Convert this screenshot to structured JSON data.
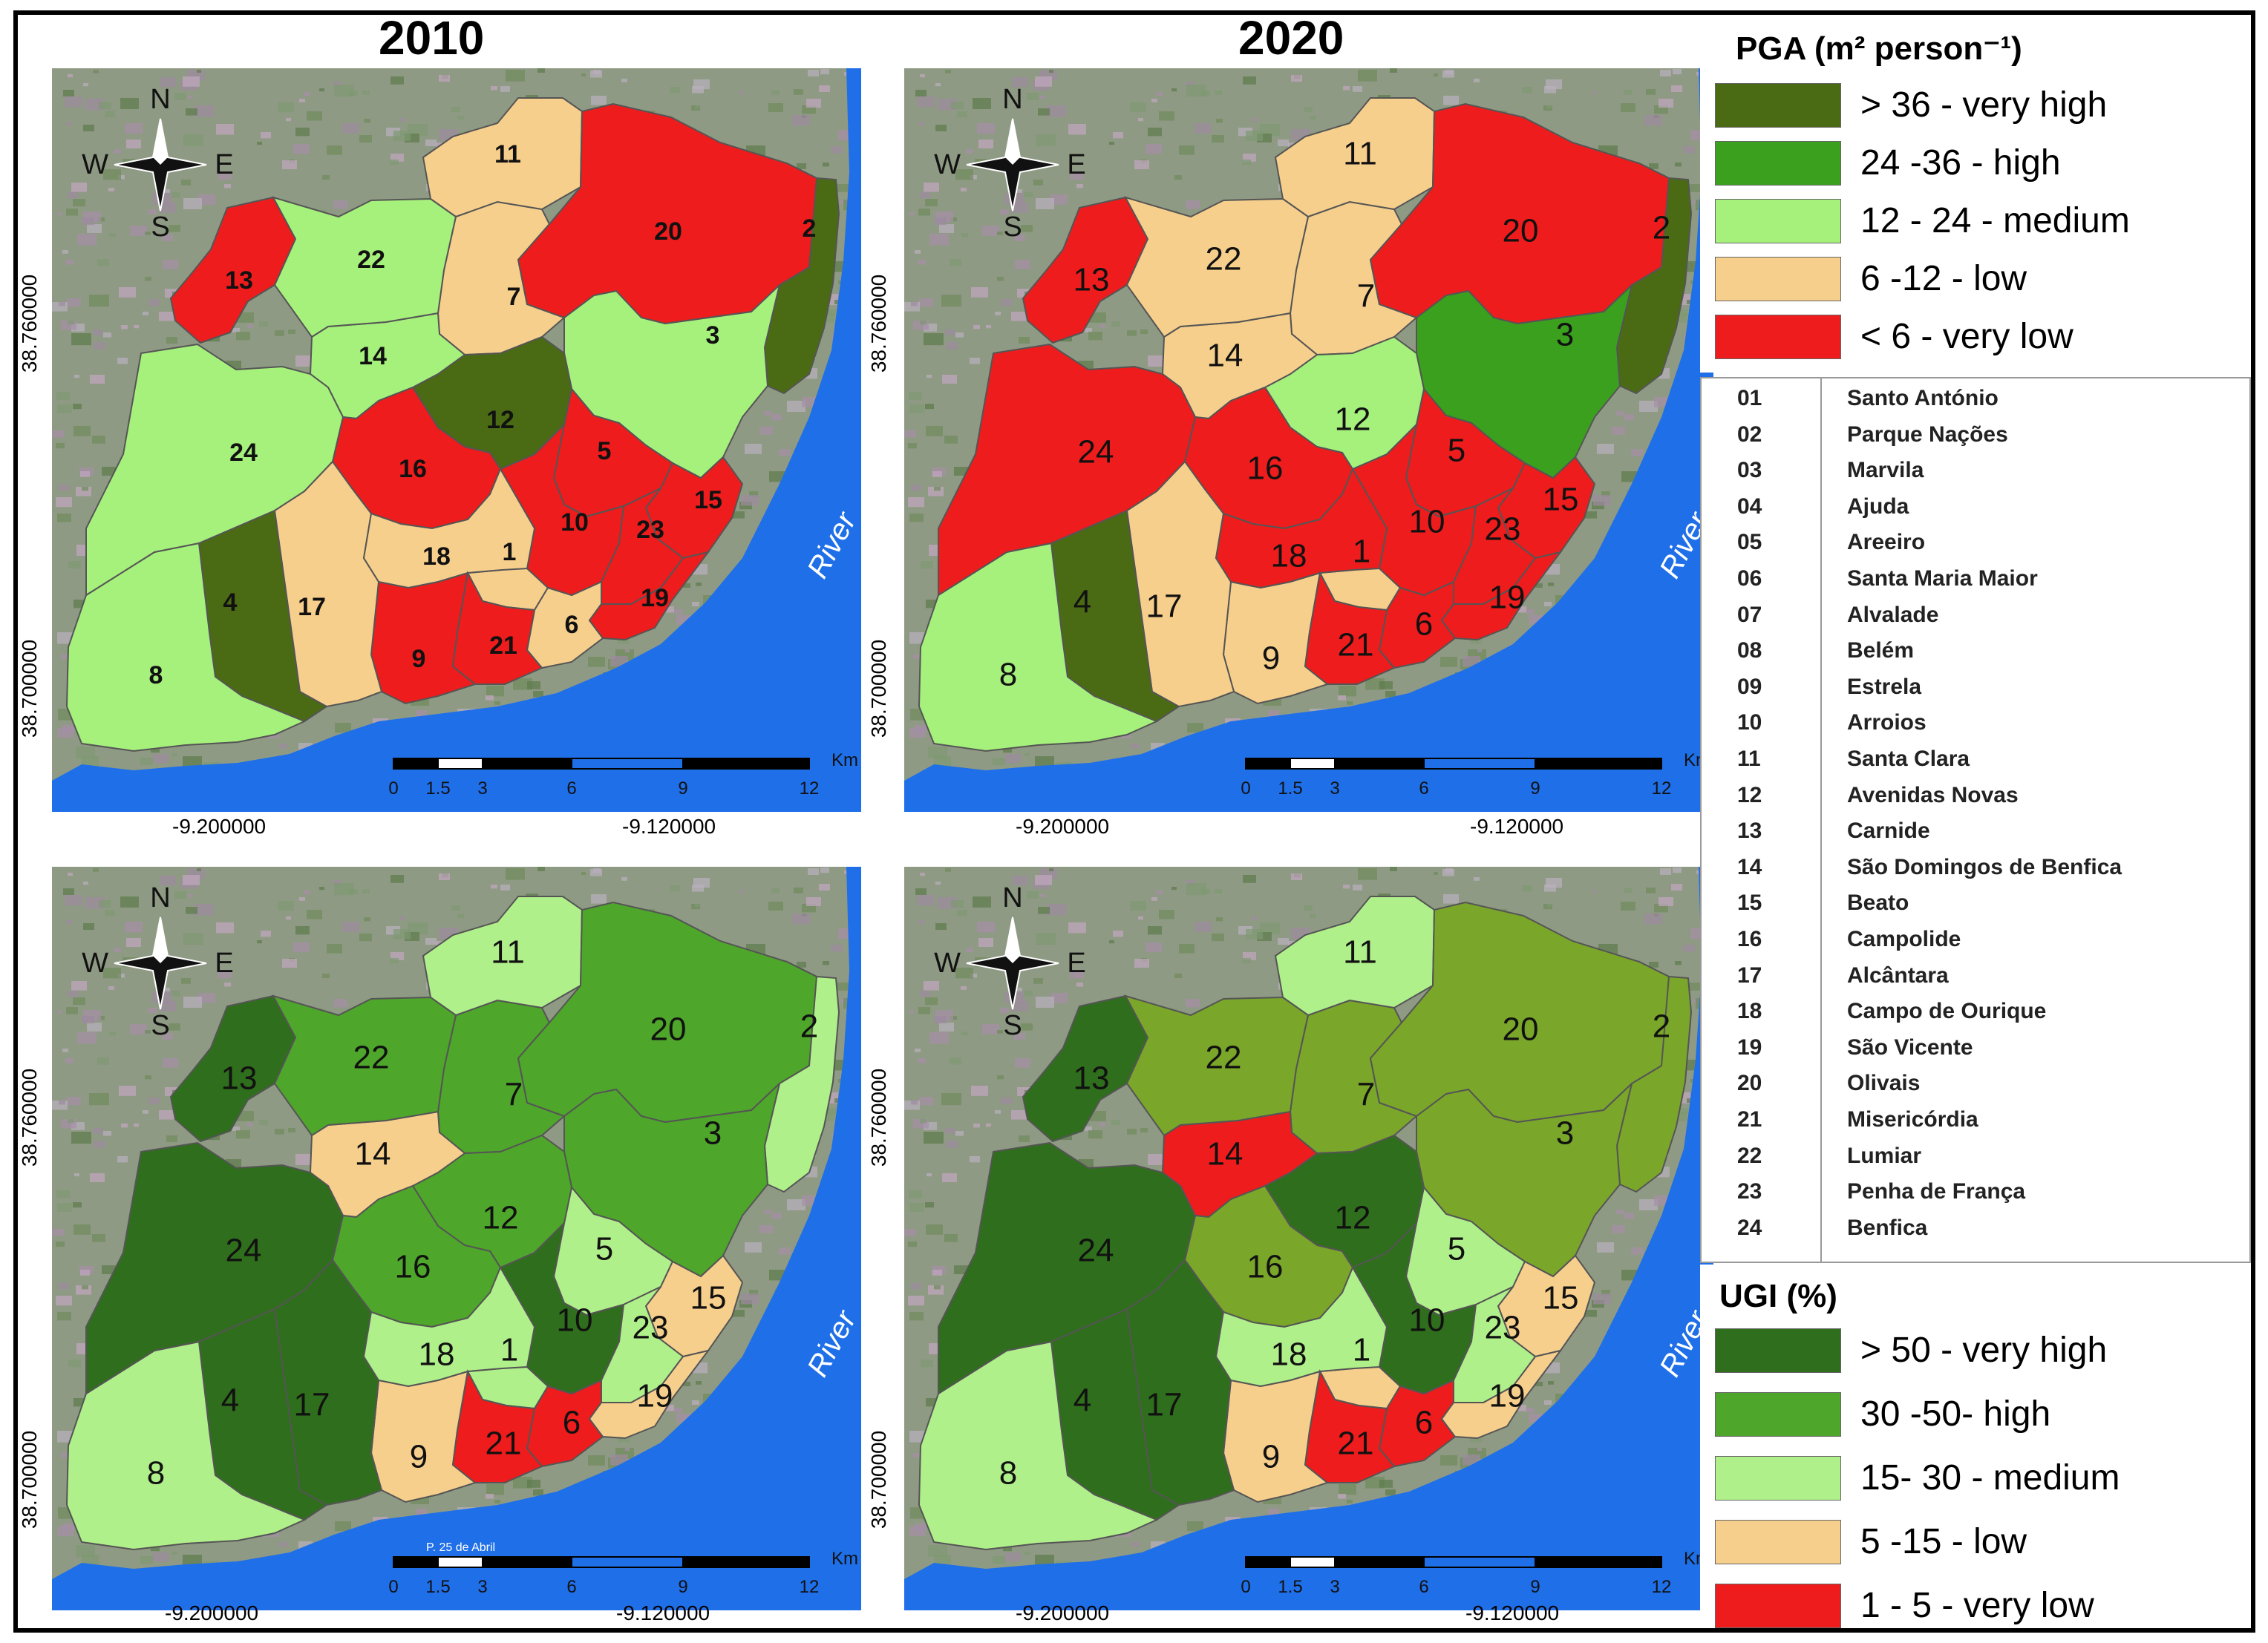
{
  "years": {
    "left": "2010",
    "right": "2020"
  },
  "colors": {
    "very_high": "#4a6b14",
    "high": "#3aa01e",
    "medium": "#a6f07c",
    "low": "#f7cf8c",
    "very_low": "#ee1c1c",
    "ugi_very_high": "#2f6e1c",
    "ugi_high": "#4ea62a",
    "ugi_medium": "#b0f08a",
    "ugi_low": "#f7cf8c",
    "ugi_very_low": "#ee1c1c",
    "ugi2020_olive": "#7aa62a",
    "river": "#1f6fe8"
  },
  "coords": {
    "lat_top": "38.760000",
    "lat_bottom": "38.700000",
    "lon_left": "-9.200000",
    "lon_right": "-9.120000"
  },
  "compass": {
    "n": "N",
    "s": "S",
    "w": "W",
    "e": "E"
  },
  "river_label": "River",
  "scale": {
    "unit": "Km",
    "ticks": [
      "0",
      "1.5",
      "3",
      "6",
      "9",
      "12"
    ],
    "road_label": "P. 25 de Abril"
  },
  "pga_legend": {
    "title": "PGA (m² person⁻¹)",
    "items": [
      {
        "label": "> 36 - very high",
        "color_key": "very_high"
      },
      {
        "label": "24 -36 - high",
        "color_key": "high"
      },
      {
        "label": "12 - 24 - medium",
        "color_key": "medium"
      },
      {
        "label": "6 -12 - low",
        "color_key": "low"
      },
      {
        "label": "< 6 - very low",
        "color_key": "very_low"
      }
    ]
  },
  "parishes": [
    {
      "id": "01",
      "name": "Santo António"
    },
    {
      "id": "02",
      "name": "Parque Nações"
    },
    {
      "id": "03",
      "name": "Marvila"
    },
    {
      "id": "04",
      "name": "Ajuda"
    },
    {
      "id": "05",
      "name": "Areeiro"
    },
    {
      "id": "06",
      "name": "Santa Maria Maior"
    },
    {
      "id": "07",
      "name": "Alvalade"
    },
    {
      "id": "08",
      "name": "Belém"
    },
    {
      "id": "09",
      "name": "Estrela"
    },
    {
      "id": "10",
      "name": "Arroios"
    },
    {
      "id": "11",
      "name": "Santa Clara"
    },
    {
      "id": "12",
      "name": "Avenidas Novas"
    },
    {
      "id": "13",
      "name": "Carnide"
    },
    {
      "id": "14",
      "name": "São Domingos de Benfica"
    },
    {
      "id": "15",
      "name": "Beato"
    },
    {
      "id": "16",
      "name": "Campolide"
    },
    {
      "id": "17",
      "name": "Alcântara"
    },
    {
      "id": "18",
      "name": "Campo de Ourique"
    },
    {
      "id": "19",
      "name": "São Vicente"
    },
    {
      "id": "20",
      "name": "Olivais"
    },
    {
      "id": "21",
      "name": "Misericórdia"
    },
    {
      "id": "22",
      "name": "Lumiar"
    },
    {
      "id": "23",
      "name": "Penha de França"
    },
    {
      "id": "24",
      "name": "Benfica"
    }
  ],
  "ugi_legend": {
    "title": "UGI (%)",
    "items": [
      {
        "label": "> 50 - very high",
        "color_key": "ugi_very_high"
      },
      {
        "label": "30 -50- high",
        "color_key": "ugi_high"
      },
      {
        "label": "15- 30 - medium",
        "color_key": "ugi_medium"
      },
      {
        "label": "5 -15 - low",
        "color_key": "ugi_low"
      },
      {
        "label": "1 - 5 - very low",
        "color_key": "ugi_very_low"
      }
    ]
  },
  "maps": {
    "pga_2010": {
      "1": "low",
      "2": "very_high",
      "3": "medium",
      "4": "very_high",
      "5": "very_low",
      "6": "low",
      "7": "low",
      "8": "medium",
      "9": "very_low",
      "10": "very_low",
      "11": "low",
      "12": "very_high",
      "13": "very_low",
      "14": "medium",
      "15": "very_low",
      "16": "very_low",
      "17": "low",
      "18": "low",
      "19": "very_low",
      "20": "very_low",
      "21": "very_low",
      "22": "medium",
      "23": "very_low",
      "24": "medium"
    },
    "pga_2020": {
      "1": "low",
      "2": "very_high",
      "3": "high",
      "4": "very_high",
      "5": "very_low",
      "6": "very_low",
      "7": "low",
      "8": "medium",
      "9": "low",
      "10": "very_low",
      "11": "low",
      "12": "medium",
      "13": "very_low",
      "14": "low",
      "15": "very_low",
      "16": "very_low",
      "17": "low",
      "18": "very_low",
      "19": "very_low",
      "20": "very_low",
      "21": "very_low",
      "22": "low",
      "23": "very_low",
      "24": "very_low"
    },
    "ugi_2010": {
      "1": "ugi_medium",
      "2": "ugi_medium",
      "3": "ugi_high",
      "4": "ugi_very_high",
      "5": "ugi_medium",
      "6": "ugi_very_low",
      "7": "ugi_high",
      "8": "ugi_medium",
      "9": "ugi_low",
      "10": "ugi_very_high",
      "11": "ugi_medium",
      "12": "ugi_high",
      "13": "ugi_very_high",
      "14": "ugi_low",
      "15": "ugi_low",
      "16": "ugi_high",
      "17": "ugi_very_high",
      "18": "ugi_medium",
      "19": "ugi_low",
      "20": "ugi_high",
      "21": "ugi_very_low",
      "22": "ugi_high",
      "23": "ugi_medium",
      "24": "ugi_very_high"
    },
    "ugi_2020": {
      "1": "ugi_low",
      "2": "ugi2020_olive",
      "3": "ugi2020_olive",
      "4": "ugi_very_high",
      "5": "ugi_medium",
      "6": "ugi_very_low",
      "7": "ugi2020_olive",
      "8": "ugi_medium",
      "9": "ugi_low",
      "10": "ugi_very_high",
      "11": "ugi_medium",
      "12": "ugi_very_high",
      "13": "ugi_very_high",
      "14": "ugi_very_low",
      "15": "ugi_low",
      "16": "ugi2020_olive",
      "17": "ugi_very_high",
      "18": "ugi_medium",
      "19": "ugi_low",
      "20": "ugi2020_olive",
      "21": "ugi_very_low",
      "22": "ugi2020_olive",
      "23": "ugi_medium",
      "24": "ugi_very_high"
    }
  }
}
